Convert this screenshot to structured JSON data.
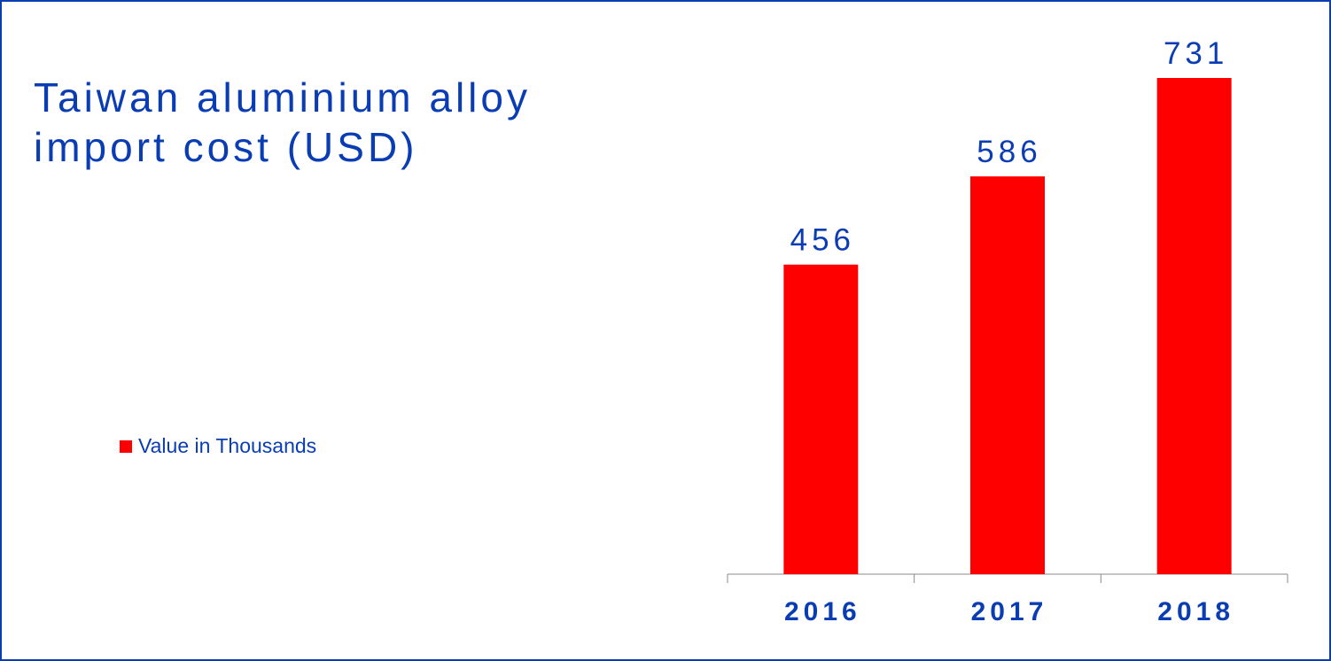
{
  "chart_data": {
    "type": "bar",
    "title": "Taiwan aluminium alloy import cost (USD)",
    "title_lines": [
      "Taiwan aluminium alloy",
      "import cost (USD)"
    ],
    "categories": [
      "2016",
      "2017",
      "2018"
    ],
    "series": [
      {
        "name": "Value in Thousands",
        "values": [
          456,
          586,
          731
        ],
        "color": "#ff0000"
      }
    ],
    "data_labels": [
      "456",
      "586",
      "731"
    ],
    "xlabel": "",
    "ylabel": "",
    "ylim": [
      0,
      731
    ],
    "grid": false,
    "y_axis_visible": false,
    "legend_placement": "left",
    "text_color": "#0a3cb4"
  }
}
